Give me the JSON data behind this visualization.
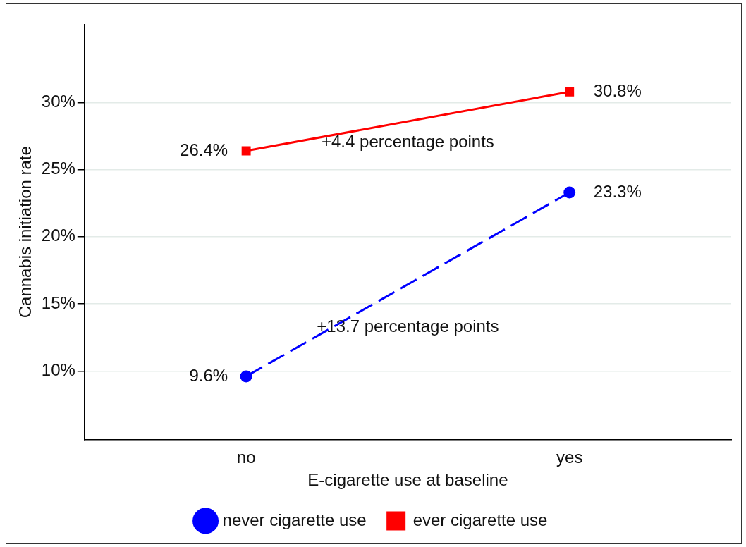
{
  "chart_data": {
    "type": "line",
    "xlabel": "E-cigarette use at baseline",
    "ylabel": "Cannabis initiation rate",
    "categories": [
      "no",
      "yes"
    ],
    "series": [
      {
        "name": "never cigarette use",
        "color": "#0000ff",
        "values": [
          9.6,
          23.3
        ],
        "value_labels": [
          "9.6%",
          "23.3%"
        ],
        "marker": "circle",
        "line_style": "dashed"
      },
      {
        "name": "ever cigarette use",
        "color": "#ff0000",
        "values": [
          26.4,
          30.8
        ],
        "value_labels": [
          "26.4%",
          "30.8%"
        ],
        "marker": "square",
        "line_style": "solid"
      }
    ],
    "ylim": [
      4.9,
      35.8
    ],
    "yticks": [
      {
        "value": 10,
        "label": "10%"
      },
      {
        "value": 15,
        "label": "15%"
      },
      {
        "value": 20,
        "label": "20%"
      },
      {
        "value": 25,
        "label": "25%"
      },
      {
        "value": 30,
        "label": "30%"
      }
    ],
    "annotations": [
      "+4.4 percentage points",
      "+13.7 percentage points"
    ],
    "grid": "y",
    "legend": "bottom"
  }
}
